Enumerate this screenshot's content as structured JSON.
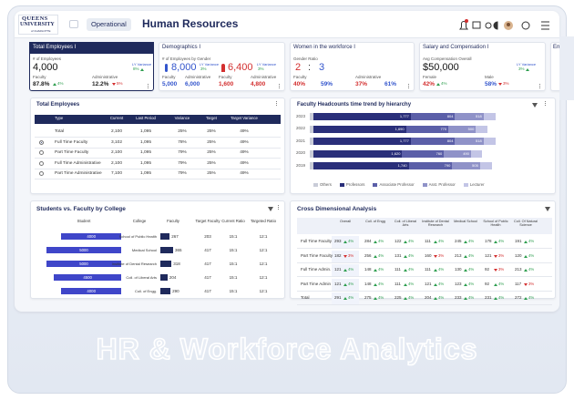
{
  "header": {
    "logo": [
      "QUEENS",
      "UNIVERSITY",
      "of CHARLOTTE"
    ],
    "tab": "Operational",
    "title": "Human Resources"
  },
  "kpis": [
    {
      "title": "Total Employees I",
      "metric": "# of Employees",
      "value": "4,000",
      "variance_label": "LY Variance",
      "variance": "8%",
      "items": [
        {
          "label": "Faculty",
          "value": "87.8%",
          "change": "4%",
          "up": true
        },
        {
          "label": "Administrative",
          "value": "12.2%",
          "change": "5%",
          "up": false
        }
      ]
    },
    {
      "title": "Demographics I",
      "metric": "# of Employees by Gender",
      "male": "8,000",
      "male_variance": "3%",
      "female": "6,400",
      "female_variance": "3%",
      "variance_label": "LY Variance",
      "items": [
        {
          "label": "Faculty",
          "value": "5,000"
        },
        {
          "label": "Administrative",
          "value": "6,000"
        },
        {
          "label": "Faculty",
          "value": "1,600"
        },
        {
          "label": "Administrative",
          "value": "4,800"
        }
      ]
    },
    {
      "title": "Women in the workforce I",
      "metric": "Gender Ratio",
      "ratio_left": "2",
      "separator": ":",
      "ratio_right": "3",
      "items": [
        {
          "label": "Faculty",
          "value": "40%"
        },
        {
          "value": "59%"
        },
        {
          "label": "Administrative",
          "value": "37%"
        },
        {
          "value": "61%"
        }
      ]
    },
    {
      "title": "Salary and Compensation I",
      "metric": "Avg Compensation Overall",
      "value": "$50,000",
      "variance_label": "LY Variance",
      "variance": "3%",
      "items": [
        {
          "label": "Female",
          "value": "42%",
          "change": "4%",
          "up": true
        },
        {
          "label": "Male",
          "value": "58%",
          "change": "3%",
          "up": false
        }
      ]
    },
    {
      "title": "Em"
    }
  ],
  "total_employees": {
    "title": "Total Employees",
    "columns": [
      "Type",
      "Current",
      "Last Period",
      "Variance",
      "Target",
      "Target Variance"
    ],
    "rows": [
      [
        "Total",
        "2,100",
        "1,095",
        "25%",
        "25%",
        "49%"
      ],
      [
        "Full Time Faculty",
        "3,102",
        "1,095",
        "78%",
        "25%",
        "49%"
      ],
      [
        "Part Time Faculty",
        "2,100",
        "1,095",
        "79%",
        "25%",
        "49%"
      ],
      [
        "Full Time Administrative",
        "2,100",
        "1,095",
        "79%",
        "25%",
        "49%"
      ],
      [
        "Part Time Administrative",
        "7,100",
        "1,095",
        "79%",
        "25%",
        "49%"
      ]
    ]
  },
  "chart_data": {
    "type": "bar",
    "orientation": "horizontal",
    "stacked": true,
    "title": "Faculty Headcounts time trend by hierarchy",
    "categories": [
      "2023",
      "2022",
      "2021",
      "2020",
      "2019"
    ],
    "series": [
      {
        "name": "Others",
        "color": "#c9ccd8",
        "values": [
          60,
          60,
          60,
          60,
          60
        ]
      },
      {
        "name": "Professors",
        "color": "#2a2f7a",
        "values": [
          1777,
          1690,
          1777,
          1620,
          1740
        ],
        "value_labels": [
          "1,777",
          "1,690",
          "1,777",
          "1,620",
          "1,740"
        ]
      },
      {
        "name": "Associate Professor",
        "color": "#5b5fa8",
        "values": [
          804,
          770,
          804,
          760,
          790
        ]
      },
      {
        "name": "Asst. Professor",
        "color": "#8f92c8",
        "values": [
          518,
          500,
          518,
          490,
          505
        ]
      },
      {
        "name": "Lecturer",
        "color": "#c3c5e6",
        "values": [
          220,
          210,
          220,
          200,
          215
        ]
      }
    ]
  },
  "students": {
    "title": "Students vs. Faculty by College",
    "columns": [
      "Student",
      "College",
      "Faculty",
      "Target Faculty",
      "Current Ratio",
      "Targeted Ratio"
    ],
    "rows": [
      {
        "student": 4000,
        "college": "School of Public Health",
        "faculty": 267,
        "target_faculty": "203",
        "current_ratio": "15:1",
        "targeted_ratio": "12:1"
      },
      {
        "student": 5000,
        "college": "Medical School",
        "faculty": 365,
        "target_faculty": "417",
        "current_ratio": "15:1",
        "targeted_ratio": "12:1"
      },
      {
        "student": 5000,
        "college": "Institute of Dental Research",
        "faculty": 318,
        "target_faculty": "417",
        "current_ratio": "15:1",
        "targeted_ratio": "12:1"
      },
      {
        "student": 4500,
        "college": "Coll. of Liberal Arts",
        "faculty": 204,
        "target_faculty": "417",
        "current_ratio": "15:1",
        "targeted_ratio": "12:1"
      },
      {
        "student": 4000,
        "college": "Coll. of Engg.",
        "faculty": 290,
        "target_faculty": "417",
        "current_ratio": "15:1",
        "targeted_ratio": "12:1"
      }
    ]
  },
  "cross": {
    "title": "Cross Dimensional Analysis",
    "columns": [
      "Overall",
      "Coll. of Engg",
      "Coll. of Liberal Arts",
      "Institute of Dental Research",
      "Medical School",
      "School of Public Health",
      "Coll. Of Natural Science"
    ],
    "rows": [
      {
        "label": "Full Time Faculty",
        "cells": [
          {
            "v": "293",
            "d": "4%",
            "up": true
          },
          {
            "v": "284",
            "d": "4%",
            "up": true
          },
          {
            "v": "122",
            "d": "4%",
            "up": true
          },
          {
            "v": "111",
            "d": "4%",
            "up": true
          },
          {
            "v": "245",
            "d": "4%",
            "up": true
          },
          {
            "v": "178",
            "d": "4%",
            "up": true
          },
          {
            "v": "191",
            "d": "4%",
            "up": true
          }
        ]
      },
      {
        "label": "Part Time Faculty",
        "cells": [
          {
            "v": "182",
            "d": "3%",
            "up": false
          },
          {
            "v": "256",
            "d": "4%",
            "up": true
          },
          {
            "v": "131",
            "d": "4%",
            "up": true
          },
          {
            "v": "160",
            "d": "3%",
            "up": false
          },
          {
            "v": "213",
            "d": "4%",
            "up": true
          },
          {
            "v": "121",
            "d": "3%",
            "up": false
          },
          {
            "v": "120",
            "d": "4%",
            "up": true
          }
        ]
      },
      {
        "label": "Full Time Admin.",
        "cells": [
          {
            "v": "121",
            "d": "4%",
            "up": true
          },
          {
            "v": "148",
            "d": "4%",
            "up": true
          },
          {
            "v": "111",
            "d": "4%",
            "up": true
          },
          {
            "v": "111",
            "d": "4%",
            "up": true
          },
          {
            "v": "130",
            "d": "4%",
            "up": true
          },
          {
            "v": "92",
            "d": "3%",
            "up": false
          },
          {
            "v": "213",
            "d": "4%",
            "up": true
          }
        ]
      },
      {
        "label": "Part Time Admin",
        "cells": [
          {
            "v": "121",
            "d": "4%",
            "up": true
          },
          {
            "v": "148",
            "d": "4%",
            "up": true
          },
          {
            "v": "111",
            "d": "4%",
            "up": true
          },
          {
            "v": "121",
            "d": "4%",
            "up": true
          },
          {
            "v": "123",
            "d": "4%",
            "up": true
          },
          {
            "v": "92",
            "d": "4%",
            "up": true
          },
          {
            "v": "117",
            "d": "3%",
            "up": false
          }
        ]
      },
      {
        "label": "Total",
        "cells": [
          {
            "v": "291",
            "d": "4%",
            "up": true
          },
          {
            "v": "275",
            "d": "4%",
            "up": true
          },
          {
            "v": "225",
            "d": "4%",
            "up": true
          },
          {
            "v": "204",
            "d": "4%",
            "up": true
          },
          {
            "v": "233",
            "d": "4%",
            "up": true
          },
          {
            "v": "231",
            "d": "4%",
            "up": true
          },
          {
            "v": "272",
            "d": "4%",
            "up": true
          }
        ]
      }
    ]
  },
  "banner": "HR & Workforce Analytics"
}
